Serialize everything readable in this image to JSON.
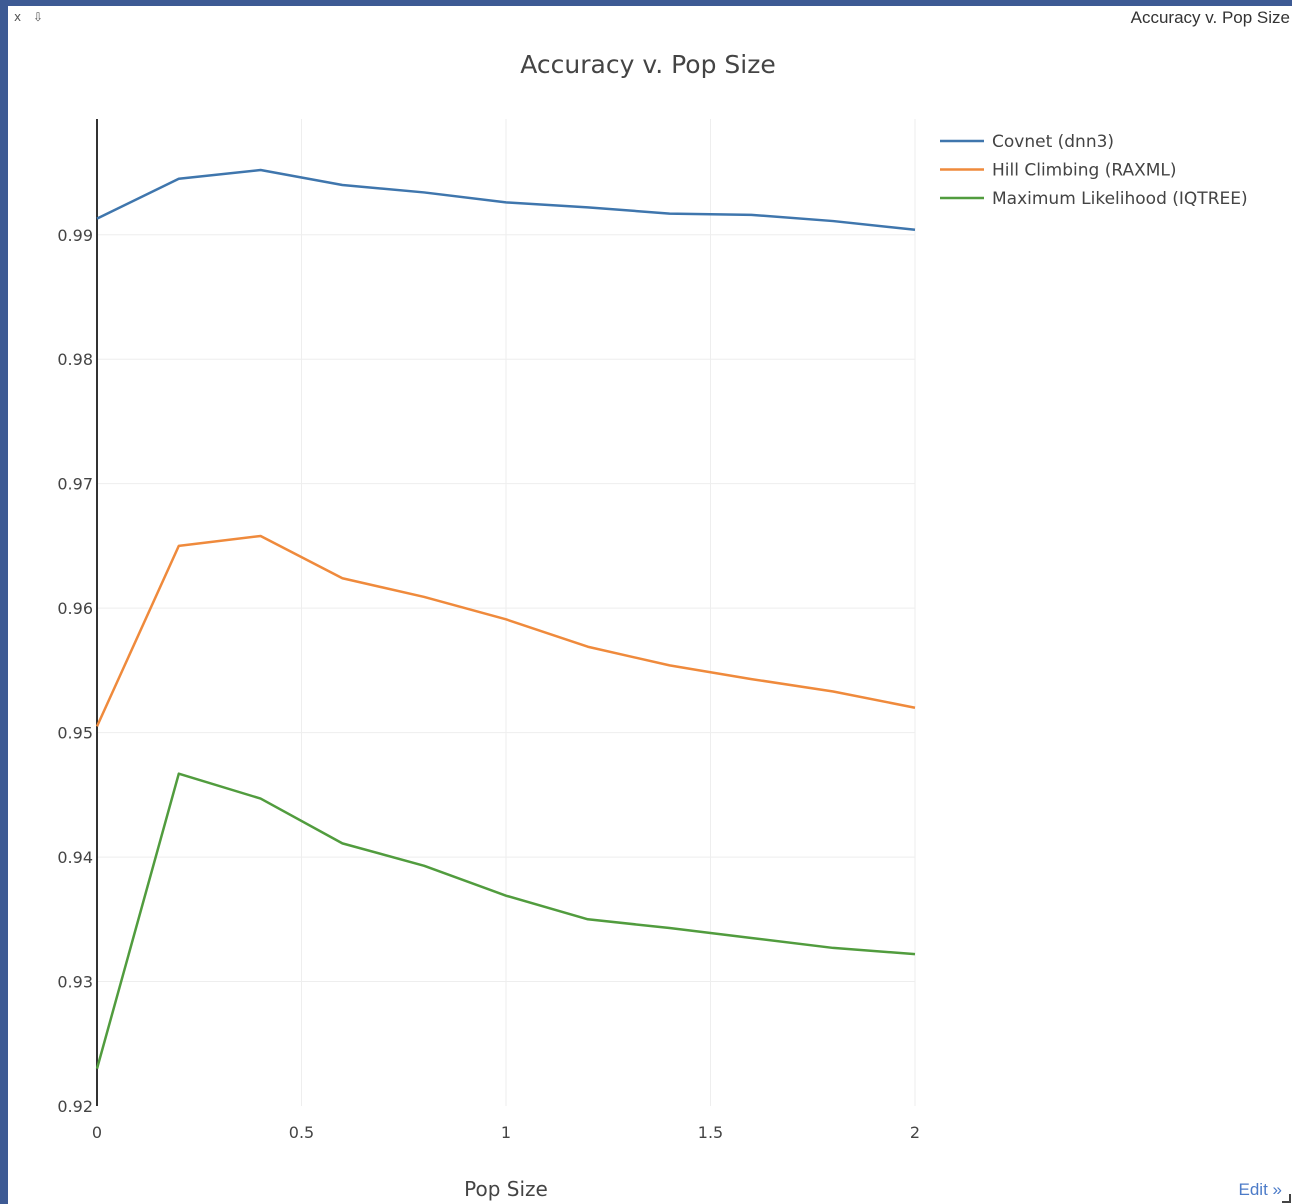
{
  "window": {
    "title": "Accuracy v. Pop Size",
    "close_label": "x",
    "download_label": "⇩",
    "edit_label": "Edit »"
  },
  "chart_data": {
    "type": "line",
    "title": "Accuracy v. Pop Size",
    "xlabel": "Pop Size",
    "ylabel": "",
    "xlim": [
      0,
      2
    ],
    "ylim": [
      0.92,
      0.9993
    ],
    "xticks": [
      0,
      0.5,
      1,
      1.5,
      2
    ],
    "xtick_labels": [
      "0",
      "0.5",
      "1",
      "1.5",
      "2"
    ],
    "yticks": [
      0.92,
      0.93,
      0.94,
      0.95,
      0.96,
      0.97,
      0.98,
      0.99
    ],
    "ytick_labels": [
      "0.92",
      "0.93",
      "0.94",
      "0.95",
      "0.96",
      "0.97",
      "0.98",
      "0.99"
    ],
    "grid": true,
    "legend": "top-right",
    "x": [
      0,
      0.2,
      0.4,
      0.6,
      0.8,
      1.0,
      1.2,
      1.4,
      1.6,
      1.8,
      2.0
    ],
    "series": [
      {
        "name": "Covnet (dnn3)",
        "color": "#3f76ad",
        "values": [
          0.9913,
          0.9945,
          0.9952,
          0.994,
          0.9934,
          0.9926,
          0.9922,
          0.9917,
          0.9916,
          0.9911,
          0.9904
        ]
      },
      {
        "name": "Hill Climbing (RAXML)",
        "color": "#ef8a3c",
        "values": [
          0.9505,
          0.965,
          0.9658,
          0.9624,
          0.9609,
          0.9591,
          0.9569,
          0.9554,
          0.9543,
          0.9533,
          0.952
        ]
      },
      {
        "name": "Maximum Likelihood (IQTREE)",
        "color": "#519c3e",
        "values": [
          0.923,
          0.9467,
          0.9447,
          0.9411,
          0.9393,
          0.9369,
          0.935,
          0.9343,
          0.9335,
          0.9327,
          0.9322
        ]
      }
    ]
  }
}
